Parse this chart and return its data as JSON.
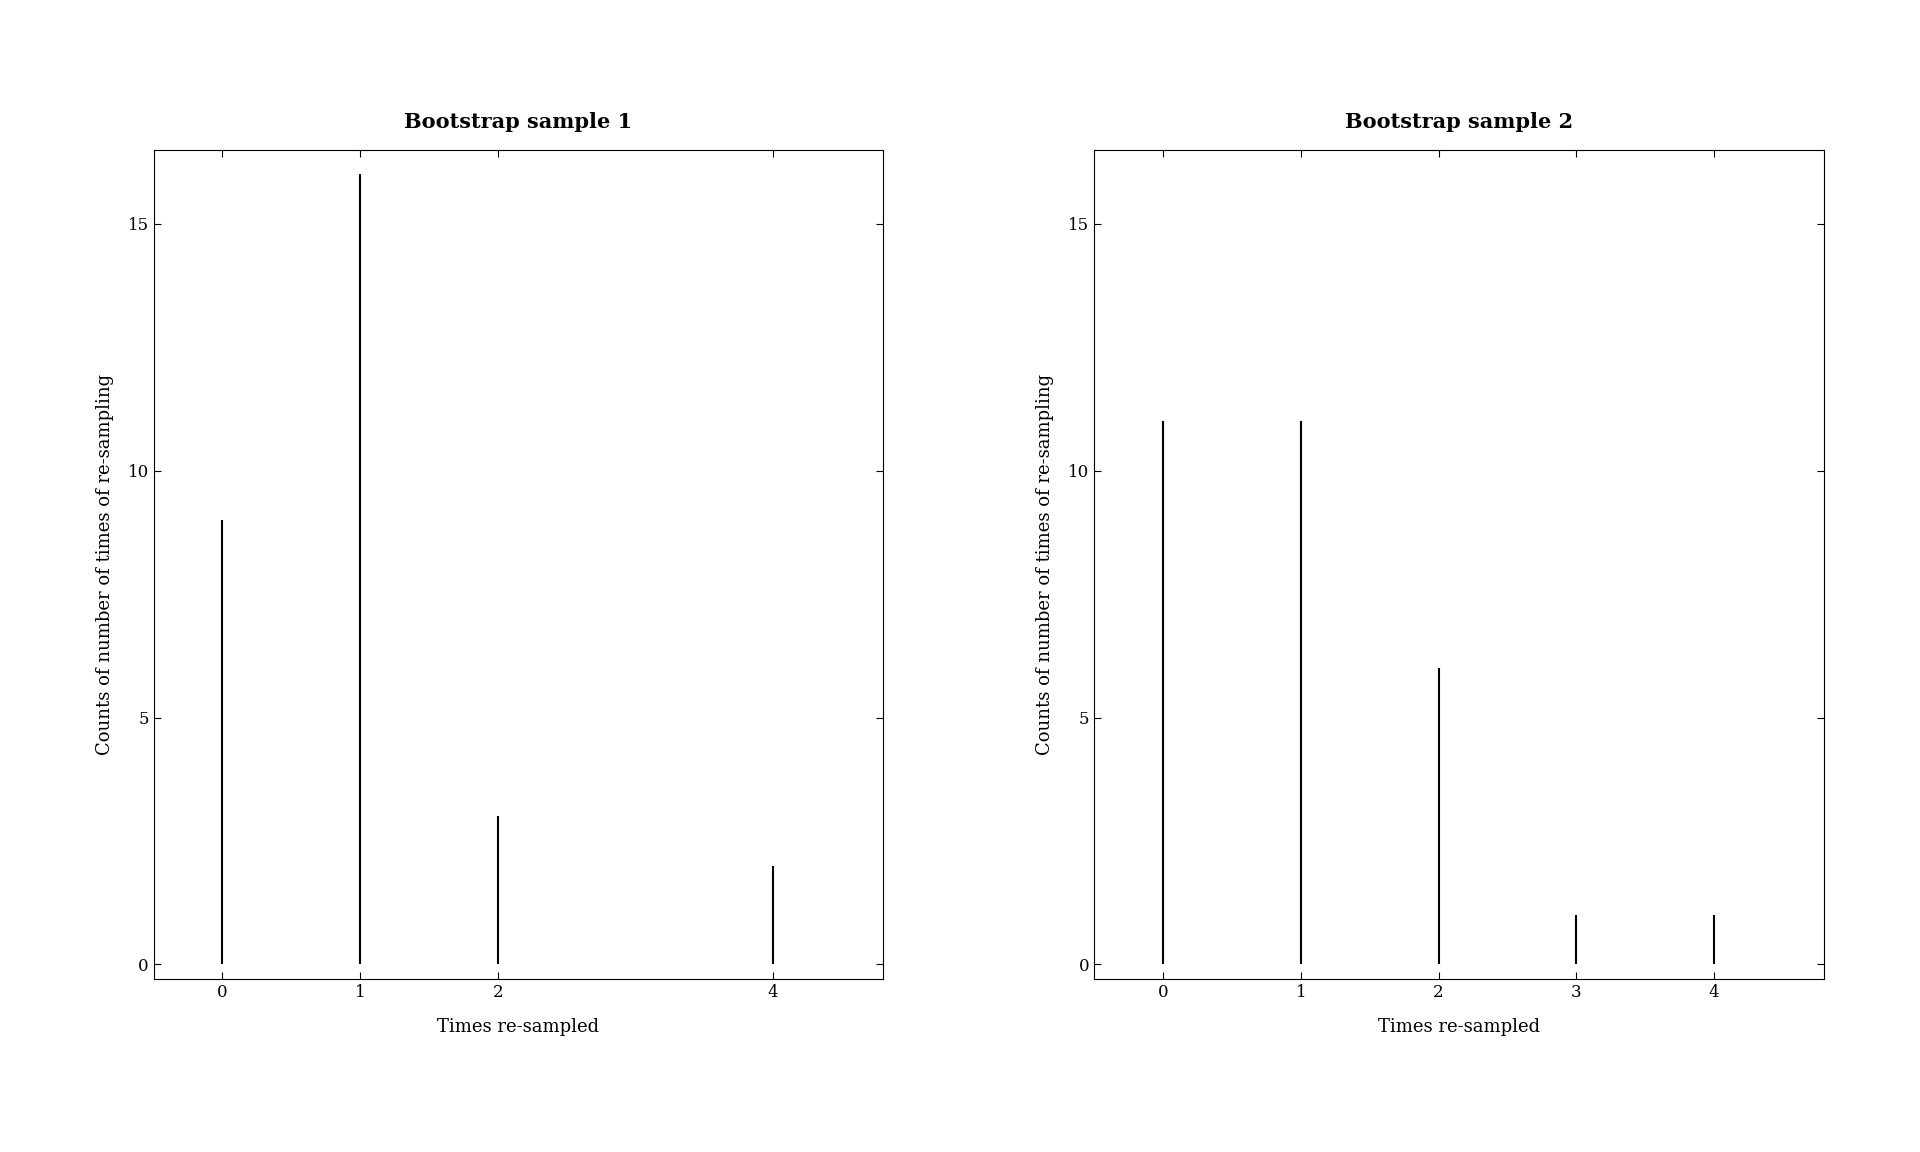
{
  "sample1": {
    "title": "Bootstrap sample 1",
    "x": [
      0,
      1,
      2,
      4
    ],
    "y": [
      9,
      16,
      3,
      2
    ],
    "xlabel": "Times re-sampled",
    "ylabel": "Counts of number of times of re-sampling",
    "xlim": [
      -0.5,
      4.8
    ],
    "ylim": [
      -0.3,
      16.5
    ],
    "yticks": [
      0,
      5,
      10,
      15
    ],
    "xticks": [
      0,
      1,
      2,
      4
    ]
  },
  "sample2": {
    "title": "Bootstrap sample 2",
    "x": [
      0,
      1,
      2,
      3,
      4
    ],
    "y": [
      11,
      11,
      6,
      1,
      1
    ],
    "xlabel": "Times re-sampled",
    "ylabel": "Counts of number of times of re-sampling",
    "xlim": [
      -0.5,
      4.8
    ],
    "ylim": [
      -0.3,
      16.5
    ],
    "yticks": [
      0,
      5,
      10,
      15
    ],
    "xticks": [
      0,
      1,
      2,
      3,
      4
    ]
  },
  "background_color": "#ffffff",
  "line_color": "#000000",
  "title_fontsize": 15,
  "label_fontsize": 13,
  "tick_fontsize": 12,
  "line_width": 1.5
}
